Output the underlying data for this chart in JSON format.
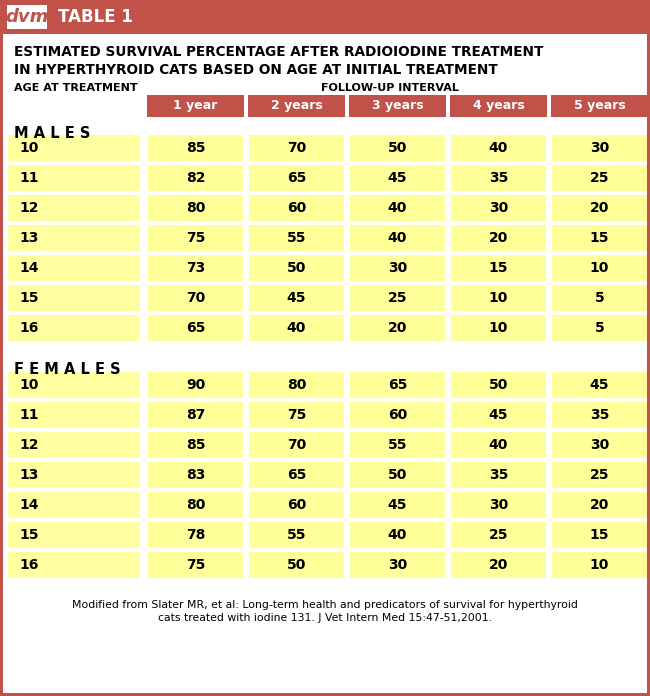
{
  "header_bar_color": "#c0524a",
  "col_headers": [
    "1 year",
    "2 years",
    "3 years",
    "4 years",
    "5 years"
  ],
  "males_label": "M A L E S",
  "females_label": "F E M A L E S",
  "male_ages": [
    10,
    11,
    12,
    13,
    14,
    15,
    16
  ],
  "male_data": [
    [
      85,
      70,
      50,
      40,
      30
    ],
    [
      82,
      65,
      45,
      35,
      25
    ],
    [
      80,
      60,
      40,
      30,
      20
    ],
    [
      75,
      55,
      40,
      20,
      15
    ],
    [
      73,
      50,
      30,
      15,
      10
    ],
    [
      70,
      45,
      25,
      10,
      5
    ],
    [
      65,
      40,
      20,
      10,
      5
    ]
  ],
  "female_ages": [
    10,
    11,
    12,
    13,
    14,
    15,
    16
  ],
  "female_data": [
    [
      90,
      80,
      65,
      50,
      45
    ],
    [
      87,
      75,
      60,
      45,
      35
    ],
    [
      85,
      70,
      55,
      40,
      30
    ],
    [
      83,
      65,
      50,
      35,
      25
    ],
    [
      80,
      60,
      45,
      30,
      20
    ],
    [
      78,
      55,
      40,
      25,
      15
    ],
    [
      75,
      50,
      30,
      20,
      10
    ]
  ],
  "bg_color": "#ffffff",
  "age_col_color": "#ffffa0",
  "data_col_color": "#ffff99",
  "footnote_line1": "Modified from Slater MR, et al: Long-term health and predicators of survival for hyperthyroid",
  "footnote_line2": "cats treated with iodine 131. J Vet Intern Med 15:47-51,2001."
}
